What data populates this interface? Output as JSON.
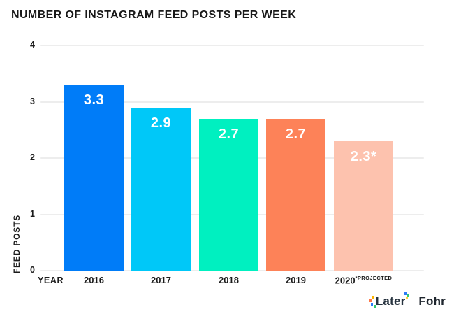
{
  "chart_data": {
    "type": "bar",
    "title": "NUMBER OF INSTAGRAM FEED POSTS PER WEEK",
    "xlabel": "YEAR",
    "ylabel": "FEED POSTS",
    "categories": [
      "2016",
      "2017",
      "2018",
      "2019",
      "2020"
    ],
    "category_suffixes": [
      "",
      "",
      "",
      "",
      "*PROJECTED"
    ],
    "values": [
      3.3,
      2.9,
      2.7,
      2.7,
      2.3
    ],
    "bar_labels": [
      "3.3",
      "2.9",
      "2.7",
      "2.7",
      "2.3*"
    ],
    "bar_colors": [
      "#007CF8",
      "#00C8F8",
      "#00F0C0",
      "#FD8258",
      "#FDC2AE"
    ],
    "ylim": [
      0,
      4
    ],
    "yticks": [
      0,
      1,
      2,
      3,
      4
    ],
    "grid": true,
    "legend": false,
    "gridline_color": "#EDEDED",
    "axis_label_color": "#1B1B1B",
    "value_label_color": "#FFFFFF",
    "annotation": "2020 value is projected (asterisk)"
  },
  "footer": {
    "later_logo_text": "Later",
    "fohr_logo_text": "Fohr",
    "later_color": "#26323E",
    "fohr_color": "#1F262E",
    "confetti_colors": [
      "#FFB400",
      "#FF7847",
      "#2E7CF6",
      "#35C96F",
      "#2E7CF6",
      "#35C96F",
      "#FFD23C"
    ]
  }
}
